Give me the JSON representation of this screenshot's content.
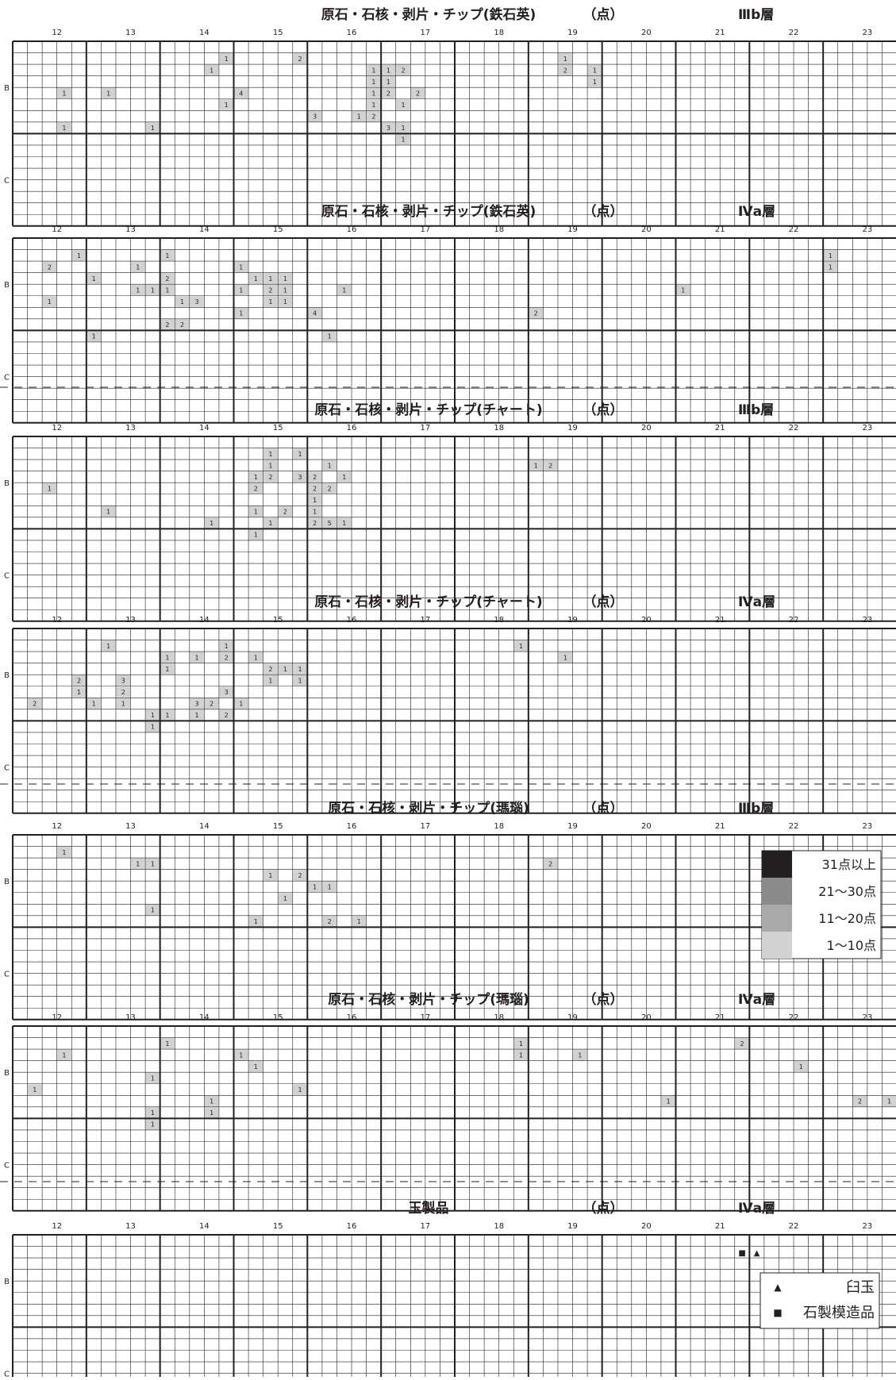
{
  "chart_data": {
    "type": "heatmap",
    "x_columns": [
      "12",
      "13",
      "14",
      "15",
      "16",
      "17",
      "18",
      "19",
      "20",
      "21",
      "22",
      "23"
    ],
    "y_rows": [
      "B",
      "C"
    ],
    "unit": "（点）",
    "legend_density": {
      "items": [
        {
          "label": "31点以上",
          "color": "#231f20"
        },
        {
          "label": "21～30点",
          "color": "#8a8a8a"
        },
        {
          "label": "11～20点",
          "color": "#a9a9a9"
        },
        {
          "label": "1～10点",
          "color": "#d2d2d2"
        }
      ]
    },
    "legend_symbols": {
      "items": [
        {
          "symbol": "▲",
          "label": "臼玉"
        },
        {
          "symbol": "■",
          "label": "石製模造品"
        }
      ]
    },
    "panels": [
      {
        "title": "原石・石核・剥片・チップ(鉄石英)",
        "unit": "（点）",
        "layer": "Ⅲb層",
        "cells": [
          {
            "col": 14,
            "row": 1,
            "value": 1
          },
          {
            "col": 19,
            "row": 1,
            "value": 2
          },
          {
            "col": 37,
            "row": 1,
            "value": 1
          },
          {
            "col": 13,
            "row": 2,
            "value": 1
          },
          {
            "col": 24,
            "row": 2,
            "value": 1
          },
          {
            "col": 25,
            "row": 2,
            "value": 1
          },
          {
            "col": 26,
            "row": 2,
            "value": 2
          },
          {
            "col": 37,
            "row": 2,
            "value": 2
          },
          {
            "col": 39,
            "row": 2,
            "value": 1
          },
          {
            "col": 24,
            "row": 3,
            "value": 1
          },
          {
            "col": 25,
            "row": 3,
            "value": 1
          },
          {
            "col": 39,
            "row": 3,
            "value": 1
          },
          {
            "col": 3,
            "row": 4,
            "value": 1
          },
          {
            "col": 6,
            "row": 4,
            "value": 1
          },
          {
            "col": 15,
            "row": 4,
            "value": 4
          },
          {
            "col": 24,
            "row": 4,
            "value": 1
          },
          {
            "col": 25,
            "row": 4,
            "value": 2
          },
          {
            "col": 27,
            "row": 4,
            "value": 2
          },
          {
            "col": 14,
            "row": 5,
            "value": 1
          },
          {
            "col": 24,
            "row": 5,
            "value": 1
          },
          {
            "col": 26,
            "row": 5,
            "value": 1
          },
          {
            "col": 20,
            "row": 6,
            "value": 3
          },
          {
            "col": 23,
            "row": 6,
            "value": 1
          },
          {
            "col": 24,
            "row": 6,
            "value": 2
          },
          {
            "col": 3,
            "row": 7,
            "value": 1
          },
          {
            "col": 9,
            "row": 7,
            "value": 1
          },
          {
            "col": 25,
            "row": 7,
            "value": 3
          },
          {
            "col": 26,
            "row": 7,
            "value": 1
          },
          {
            "col": 26,
            "row": 8,
            "value": 1
          }
        ],
        "symbols": []
      },
      {
        "title": "原石・石核・剥片・チップ(鉄石英)",
        "unit": "（点）",
        "layer": "Ⅳa層",
        "cells": [
          {
            "col": 4,
            "row": 1,
            "value": 1
          },
          {
            "col": 10,
            "row": 1,
            "value": 1
          },
          {
            "col": 55,
            "row": 1,
            "value": 1
          },
          {
            "col": 2,
            "row": 2,
            "value": 2
          },
          {
            "col": 8,
            "row": 2,
            "value": 1
          },
          {
            "col": 15,
            "row": 2,
            "value": 1
          },
          {
            "col": 55,
            "row": 2,
            "value": 1
          },
          {
            "col": 5,
            "row": 3,
            "value": 1
          },
          {
            "col": 10,
            "row": 3,
            "value": 2
          },
          {
            "col": 16,
            "row": 3,
            "value": 1
          },
          {
            "col": 17,
            "row": 3,
            "value": 1
          },
          {
            "col": 18,
            "row": 3,
            "value": 1
          },
          {
            "col": 8,
            "row": 4,
            "value": 1
          },
          {
            "col": 9,
            "row": 4,
            "value": 1
          },
          {
            "col": 10,
            "row": 4,
            "value": 1
          },
          {
            "col": 15,
            "row": 4,
            "value": 1
          },
          {
            "col": 17,
            "row": 4,
            "value": 2
          },
          {
            "col": 18,
            "row": 4,
            "value": 1
          },
          {
            "col": 22,
            "row": 4,
            "value": 1
          },
          {
            "col": 45,
            "row": 4,
            "value": 1
          },
          {
            "col": 2,
            "row": 5,
            "value": 1
          },
          {
            "col": 11,
            "row": 5,
            "value": 1
          },
          {
            "col": 12,
            "row": 5,
            "value": 3
          },
          {
            "col": 17,
            "row": 5,
            "value": 1
          },
          {
            "col": 18,
            "row": 5,
            "value": 1
          },
          {
            "col": 15,
            "row": 6,
            "value": 1
          },
          {
            "col": 20,
            "row": 6,
            "value": 4
          },
          {
            "col": 35,
            "row": 6,
            "value": 2
          },
          {
            "col": 10,
            "row": 7,
            "value": 2
          },
          {
            "col": 11,
            "row": 7,
            "value": 2
          },
          {
            "col": 5,
            "row": 8,
            "value": 1
          },
          {
            "col": 21,
            "row": 8,
            "value": 1
          }
        ],
        "symbols": []
      },
      {
        "title": "原石・石核・剥片・チップ(チャート)",
        "unit": "（点）",
        "layer": "Ⅲb層",
        "cells": [
          {
            "col": 17,
            "row": 1,
            "value": 1
          },
          {
            "col": 19,
            "row": 1,
            "value": 1
          },
          {
            "col": 17,
            "row": 2,
            "value": 1
          },
          {
            "col": 21,
            "row": 2,
            "value": 1
          },
          {
            "col": 35,
            "row": 2,
            "value": 1
          },
          {
            "col": 36,
            "row": 2,
            "value": 2
          },
          {
            "col": 16,
            "row": 3,
            "value": 1
          },
          {
            "col": 17,
            "row": 3,
            "value": 2
          },
          {
            "col": 19,
            "row": 3,
            "value": 3
          },
          {
            "col": 20,
            "row": 3,
            "value": 2
          },
          {
            "col": 22,
            "row": 3,
            "value": 1
          },
          {
            "col": 2,
            "row": 4,
            "value": 1
          },
          {
            "col": 16,
            "row": 4,
            "value": 2
          },
          {
            "col": 20,
            "row": 4,
            "value": 2
          },
          {
            "col": 21,
            "row": 4,
            "value": 2
          },
          {
            "col": 20,
            "row": 5,
            "value": 1
          },
          {
            "col": 6,
            "row": 6,
            "value": 1
          },
          {
            "col": 16,
            "row": 6,
            "value": 1
          },
          {
            "col": 18,
            "row": 6,
            "value": 2
          },
          {
            "col": 20,
            "row": 6,
            "value": 1
          },
          {
            "col": 13,
            "row": 7,
            "value": 1
          },
          {
            "col": 17,
            "row": 7,
            "value": 1
          },
          {
            "col": 20,
            "row": 7,
            "value": 2
          },
          {
            "col": 21,
            "row": 7,
            "value": 5
          },
          {
            "col": 22,
            "row": 7,
            "value": 1
          },
          {
            "col": 16,
            "row": 8,
            "value": 1
          }
        ],
        "symbols": []
      },
      {
        "title": "原石・石核・剥片・チップ(チャート)",
        "unit": "（点）",
        "layer": "Ⅳa層",
        "cells": [
          {
            "col": 6,
            "row": 1,
            "value": 1
          },
          {
            "col": 14,
            "row": 1,
            "value": 1
          },
          {
            "col": 34,
            "row": 1,
            "value": 1
          },
          {
            "col": 10,
            "row": 2,
            "value": 1
          },
          {
            "col": 12,
            "row": 2,
            "value": 1
          },
          {
            "col": 14,
            "row": 2,
            "value": 2
          },
          {
            "col": 16,
            "row": 2,
            "value": 1
          },
          {
            "col": 37,
            "row": 2,
            "value": 1
          },
          {
            "col": 10,
            "row": 3,
            "value": 1
          },
          {
            "col": 17,
            "row": 3,
            "value": 2
          },
          {
            "col": 18,
            "row": 3,
            "value": 1
          },
          {
            "col": 19,
            "row": 3,
            "value": 1
          },
          {
            "col": 4,
            "row": 4,
            "value": 2
          },
          {
            "col": 7,
            "row": 4,
            "value": 3
          },
          {
            "col": 17,
            "row": 4,
            "value": 1
          },
          {
            "col": 19,
            "row": 4,
            "value": 1
          },
          {
            "col": 4,
            "row": 5,
            "value": 1
          },
          {
            "col": 7,
            "row": 5,
            "value": 2
          },
          {
            "col": 14,
            "row": 5,
            "value": 3
          },
          {
            "col": 1,
            "row": 6,
            "value": 2
          },
          {
            "col": 5,
            "row": 6,
            "value": 1
          },
          {
            "col": 7,
            "row": 6,
            "value": 1
          },
          {
            "col": 12,
            "row": 6,
            "value": 3
          },
          {
            "col": 13,
            "row": 6,
            "value": 2
          },
          {
            "col": 15,
            "row": 6,
            "value": 1
          },
          {
            "col": 9,
            "row": 7,
            "value": 1
          },
          {
            "col": 10,
            "row": 7,
            "value": 1
          },
          {
            "col": 12,
            "row": 7,
            "value": 1
          },
          {
            "col": 14,
            "row": 7,
            "value": 2
          },
          {
            "col": 9,
            "row": 8,
            "value": 1
          }
        ],
        "symbols": []
      },
      {
        "title": "原石・石核・剥片・チップ(瑪瑙)",
        "unit": "（点）",
        "layer": "Ⅲb層",
        "cells": [
          {
            "col": 3,
            "row": 1,
            "value": 1
          },
          {
            "col": 8,
            "row": 2,
            "value": 1
          },
          {
            "col": 9,
            "row": 2,
            "value": 1
          },
          {
            "col": 36,
            "row": 2,
            "value": 2
          },
          {
            "col": 17,
            "row": 3,
            "value": 1
          },
          {
            "col": 19,
            "row": 3,
            "value": 2
          },
          {
            "col": 20,
            "row": 4,
            "value": 1
          },
          {
            "col": 21,
            "row": 4,
            "value": 1
          },
          {
            "col": 18,
            "row": 5,
            "value": 1
          },
          {
            "col": 9,
            "row": 6,
            "value": 1
          },
          {
            "col": 16,
            "row": 7,
            "value": 1
          },
          {
            "col": 21,
            "row": 7,
            "value": 2
          },
          {
            "col": 23,
            "row": 7,
            "value": 1
          }
        ],
        "symbols": []
      },
      {
        "title": "原石・石核・剥片・チップ(瑪瑙)",
        "unit": "（点）",
        "layer": "Ⅳa層",
        "cells": [
          {
            "col": 10,
            "row": 1,
            "value": 1
          },
          {
            "col": 34,
            "row": 1,
            "value": 1
          },
          {
            "col": 49,
            "row": 1,
            "value": 2
          },
          {
            "col": 3,
            "row": 2,
            "value": 1
          },
          {
            "col": 15,
            "row": 2,
            "value": 1
          },
          {
            "col": 34,
            "row": 2,
            "value": 1
          },
          {
            "col": 38,
            "row": 2,
            "value": 1
          },
          {
            "col": 16,
            "row": 3,
            "value": 1
          },
          {
            "col": 53,
            "row": 3,
            "value": 1
          },
          {
            "col": 9,
            "row": 4,
            "value": 1
          },
          {
            "col": 1,
            "row": 5,
            "value": 1
          },
          {
            "col": 19,
            "row": 5,
            "value": 1
          },
          {
            "col": 13,
            "row": 6,
            "value": 1
          },
          {
            "col": 44,
            "row": 6,
            "value": 1
          },
          {
            "col": 57,
            "row": 6,
            "value": 2
          },
          {
            "col": 59,
            "row": 6,
            "value": 1
          },
          {
            "col": 9,
            "row": 7,
            "value": 1
          },
          {
            "col": 13,
            "row": 7,
            "value": 1
          },
          {
            "col": 9,
            "row": 8,
            "value": 1
          }
        ],
        "symbols": []
      },
      {
        "title": "玉製品",
        "unit": "（点）",
        "layer": "Ⅳa層",
        "cells": [],
        "symbols": [
          {
            "col": 49,
            "row": 1,
            "symbol": "■"
          },
          {
            "col": 50,
            "row": 1,
            "symbol": "▲"
          }
        ]
      }
    ]
  }
}
